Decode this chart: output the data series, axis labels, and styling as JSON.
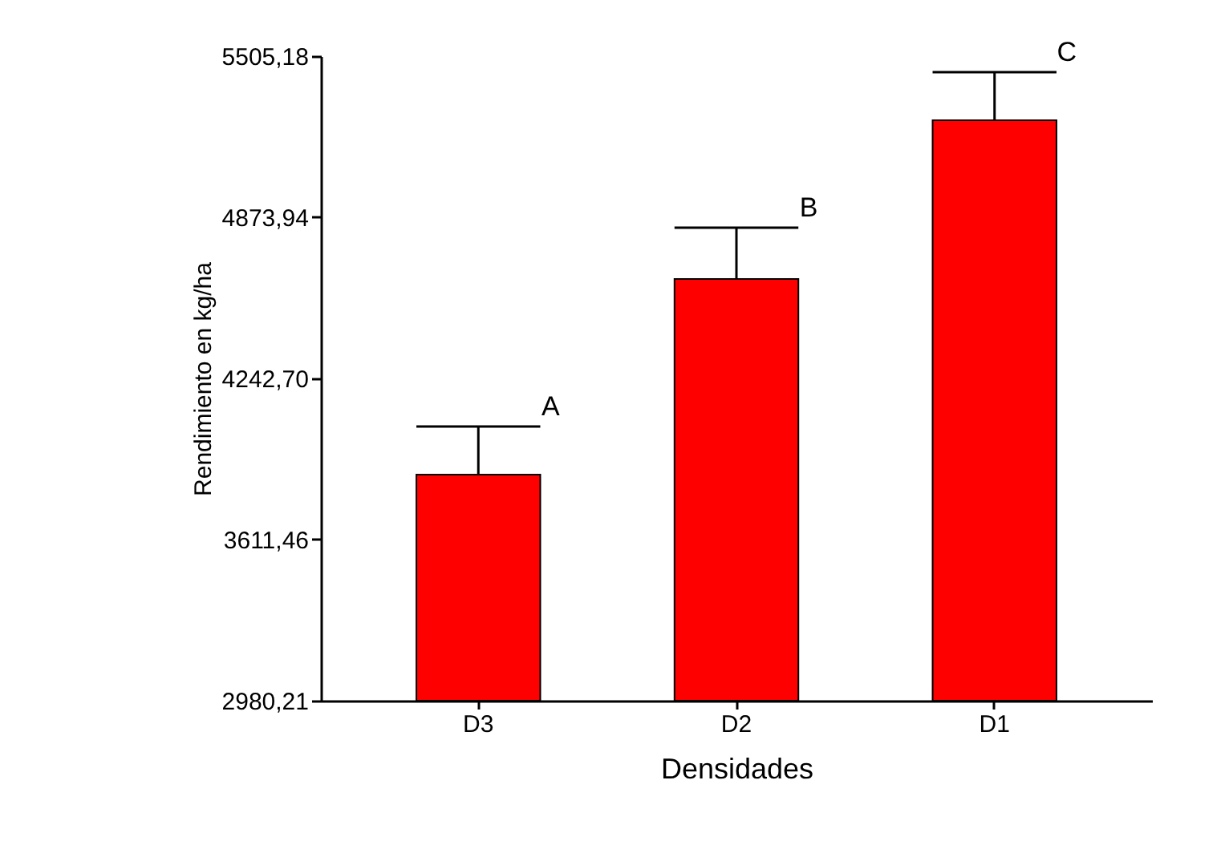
{
  "chart_data": {
    "type": "bar",
    "xlabel": "Densidades",
    "ylabel": "Rendimiento en kg/ha",
    "categories": [
      "D3",
      "D2",
      "D1"
    ],
    "values": [
      3866,
      4632,
      5254
    ],
    "errors": [
      [
        3866,
        4054
      ],
      [
        4632,
        4833
      ],
      [
        5254,
        5442
      ]
    ],
    "color": "#ff0000",
    "ylim": [
      2980.21,
      5505.18
    ],
    "yticks": [
      {
        "value": 2980.21,
        "label": "2980,21"
      },
      {
        "value": 3611.46,
        "label": "3611,46"
      },
      {
        "value": 4242.7,
        "label": "4242,70"
      },
      {
        "value": 4873.94,
        "label": "4873,94"
      },
      {
        "value": 5505.18,
        "label": "5505,18"
      }
    ],
    "annotations": [
      {
        "text": "A",
        "x": "D3",
        "y": 4054
      },
      {
        "text": "B",
        "x": "D2",
        "y": 4833
      },
      {
        "text": "C",
        "x": "D1",
        "y": 5442
      }
    ],
    "grid": false
  }
}
